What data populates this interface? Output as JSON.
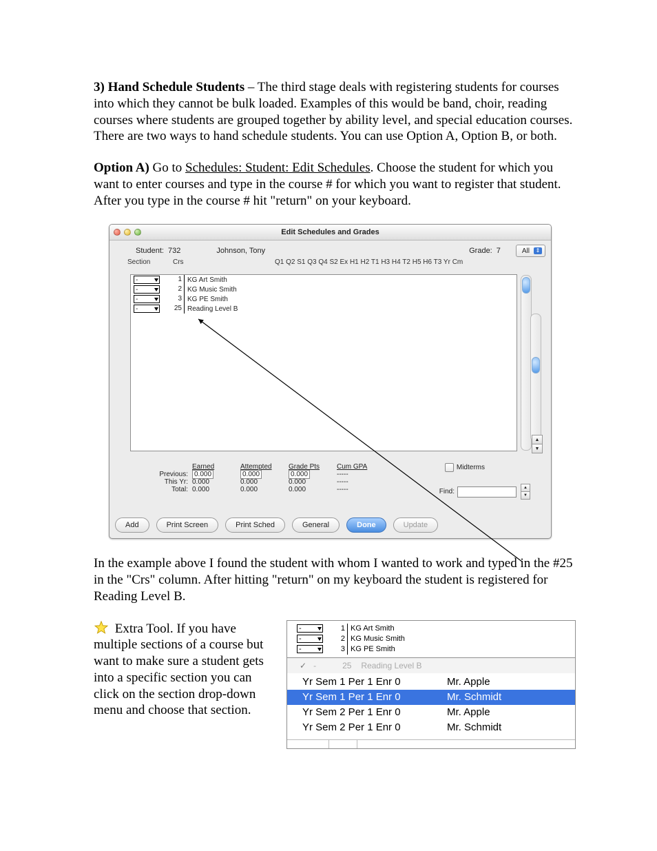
{
  "body": {
    "heading_num": "3)",
    "heading_text": "Hand Schedule Students",
    "p1_rest": " – The third stage deals with registering students for courses into which they cannot be bulk loaded.  Examples of this would be band, choir, reading courses where students are grouped together by ability level, and special education courses. There are two ways to hand schedule students. You can use Option A, Option B, or both.",
    "optA_label": "Option A)",
    "optA_rest1": " Go to ",
    "optA_path": "Schedules: Student: Edit Schedules",
    "optA_rest2": ". Choose the student for which you want to enter courses and type in the course # for which you want to register that student. After you type in the course # hit \"return\" on your keyboard.",
    "p2": "In the example above I found the student with whom I wanted to work and typed in the #25 in the \"Crs\" column. After hitting \"return\" on my keyboard the student is registered for Reading Level B.",
    "extra": " Extra Tool.  If you have multiple sections of a course but want to make sure a student gets into a specific section you can click on the section drop-down menu and choose that section."
  },
  "win": {
    "title": "Edit Schedules and Grades",
    "student_lbl": "Student:",
    "student_id": "732",
    "student_name": "Johnson, Tony",
    "grade_lbl": "Grade:",
    "grade_val": "7",
    "filter_all": "All",
    "hdr_section": "Section",
    "hdr_crs": "Crs",
    "hdr_periods": "Q1 Q2 S1 Q3 Q4 S2 Ex H1 H2 T1 H3 H4 T2 H5 H6 T3 Yr Cm",
    "rows": [
      {
        "sec": "-",
        "crs": "1",
        "name": "KG Art Smith"
      },
      {
        "sec": "-",
        "crs": "2",
        "name": "KG Music Smith"
      },
      {
        "sec": "-",
        "crs": "3",
        "name": "KG PE Smith"
      },
      {
        "sec": "-",
        "crs": "25",
        "name": "Reading Level B"
      }
    ],
    "sum_hdr": {
      "earned": "Earned",
      "attempted": "Attempted",
      "gradepts": "Grade Pts",
      "cumgpa": "Cum GPA"
    },
    "sum_rows": [
      {
        "lbl": "Previous:",
        "earned": "0.000",
        "attempted": "0.000",
        "gradepts": "0.000",
        "cumgpa": "-----"
      },
      {
        "lbl": "This Yr:",
        "earned": "0.000",
        "attempted": "0.000",
        "gradepts": "0.000",
        "cumgpa": "-----"
      },
      {
        "lbl": "Total:",
        "earned": "0.000",
        "attempted": "0.000",
        "gradepts": "0.000",
        "cumgpa": "-----"
      }
    ],
    "midterms": "Midterms",
    "find_lbl": "Find:",
    "buttons": {
      "add": "Add",
      "printscreen": "Print Screen",
      "printsched": "Print Sched",
      "general": "General",
      "done": "Done",
      "update": "Update"
    }
  },
  "win2": {
    "rows": [
      {
        "sec": "-",
        "crs": "1",
        "name": "KG Art Smith"
      },
      {
        "sec": "-",
        "crs": "2",
        "name": "KG Music Smith"
      },
      {
        "sec": "-",
        "crs": "3",
        "name": "KG PE Smith"
      }
    ],
    "grey_sec": "-",
    "grey_crs": "25",
    "grey_name": "Reading Level B",
    "options": [
      {
        "l": "Yr Sem 1  Per 1  Enr 0",
        "r": "Mr. Apple",
        "selected": false
      },
      {
        "l": "Yr Sem 1  Per 1  Enr 0",
        "r": "Mr. Schmidt",
        "selected": true
      },
      {
        "l": "Yr Sem 2  Per 1  Enr 0",
        "r": "Mr. Apple",
        "selected": false
      },
      {
        "l": "Yr Sem 2  Per 1  Enr 0",
        "r": "Mr. Schmidt",
        "selected": false
      }
    ]
  },
  "colors": {
    "highlight": "#3a74e0",
    "star_fill": "#ffe24a",
    "star_stroke": "#c49b00"
  }
}
